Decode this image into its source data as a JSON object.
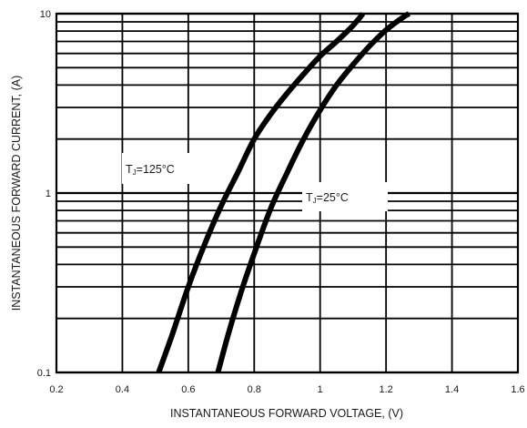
{
  "chart_data": {
    "type": "line",
    "xlabel": "INSTANTANEOUS FORWARD VOLTAGE, (V)",
    "ylabel": "INSTANTANEOUS FORWARD CURRENT, (A)",
    "xlim": [
      0.2,
      1.6
    ],
    "ylim": [
      0.1,
      10
    ],
    "yscale": "log",
    "grid": true,
    "x_ticks": [
      "0.2",
      "0.4",
      "0.6",
      "0.8",
      "1",
      "1.2",
      "1.4",
      "1.6"
    ],
    "y_ticks": [
      "0.1",
      "1",
      "10"
    ],
    "series": [
      {
        "name": "TJ=125°C",
        "label_main": "T",
        "label_sub": "J",
        "label_rest": "=125°C",
        "x": [
          0.51,
          0.55,
          0.6,
          0.65,
          0.7,
          0.75,
          0.8,
          0.85,
          0.9,
          0.95,
          1.0,
          1.05,
          1.1,
          1.13
        ],
        "y": [
          0.1,
          0.16,
          0.3,
          0.52,
          0.85,
          1.3,
          2.0,
          2.75,
          3.6,
          4.6,
          5.8,
          7.0,
          8.6,
          10
        ]
      },
      {
        "name": "TJ=25°C",
        "label_main": "T",
        "label_sub": "J",
        "label_rest": "=25°C",
        "x": [
          0.69,
          0.72,
          0.76,
          0.8,
          0.85,
          0.9,
          0.95,
          1.0,
          1.05,
          1.1,
          1.15,
          1.2,
          1.25,
          1.27
        ],
        "y": [
          0.1,
          0.16,
          0.28,
          0.46,
          0.82,
          1.3,
          2.0,
          2.9,
          4.0,
          5.2,
          6.6,
          8.1,
          9.5,
          10
        ]
      }
    ]
  }
}
